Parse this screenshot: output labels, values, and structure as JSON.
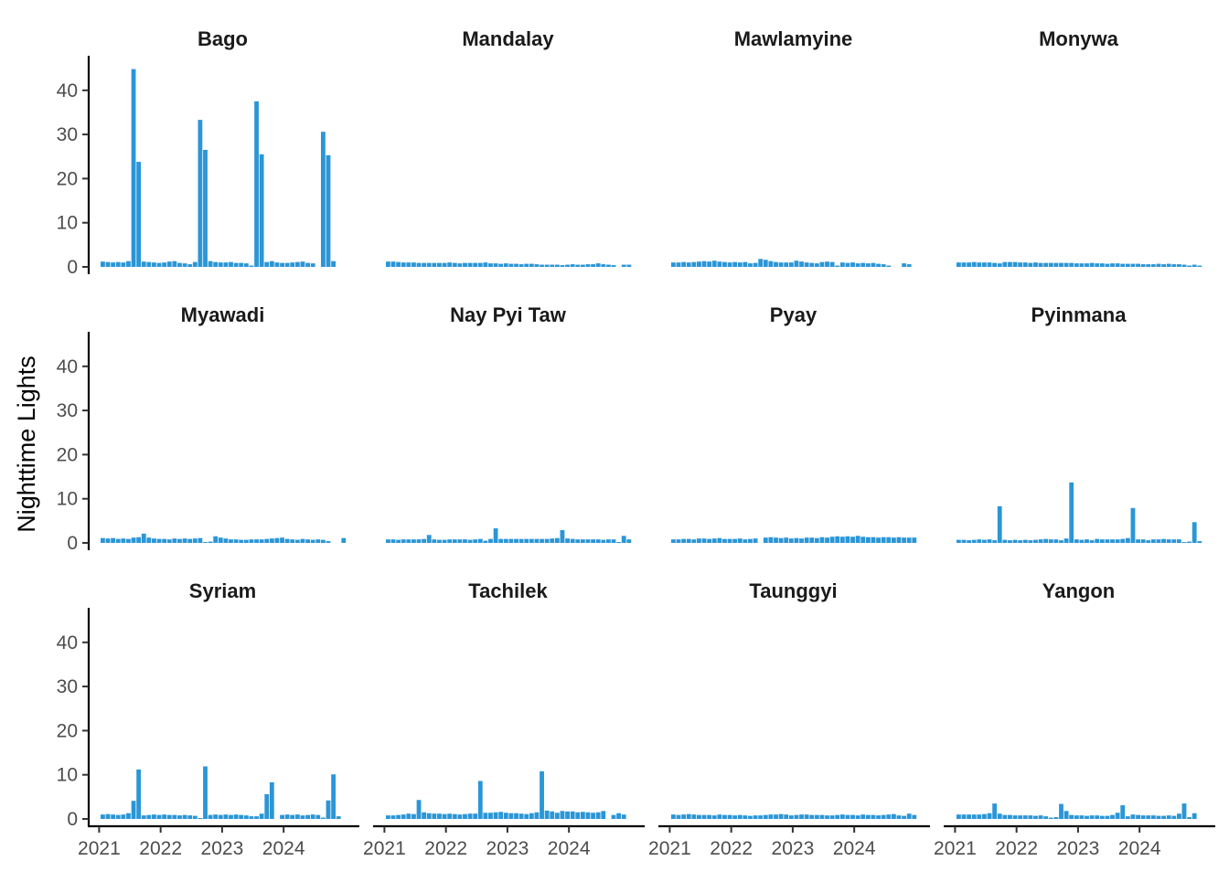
{
  "chart_data": {
    "type": "bar",
    "facet_by": "city",
    "facet_layout": "3 rows x 4 columns",
    "title": "",
    "xlabel": "",
    "ylabel": "Nighttime Lights",
    "x_range": [
      "2021-01",
      "2024-12"
    ],
    "ylim": [
      0,
      47
    ],
    "y_ticks": [
      0,
      10,
      20,
      30,
      40
    ],
    "x_ticks": [
      "2021",
      "2022",
      "2023",
      "2024"
    ],
    "grid": false,
    "legend": "none",
    "bar_color": "#2b96d6",
    "months": [
      "2021-01",
      "2021-02",
      "2021-03",
      "2021-04",
      "2021-05",
      "2021-06",
      "2021-07",
      "2021-08",
      "2021-09",
      "2021-10",
      "2021-11",
      "2021-12",
      "2022-01",
      "2022-02",
      "2022-03",
      "2022-04",
      "2022-05",
      "2022-06",
      "2022-07",
      "2022-08",
      "2022-09",
      "2022-10",
      "2022-11",
      "2022-12",
      "2023-01",
      "2023-02",
      "2023-03",
      "2023-04",
      "2023-05",
      "2023-06",
      "2023-07",
      "2023-08",
      "2023-09",
      "2023-10",
      "2023-11",
      "2023-12",
      "2024-01",
      "2024-02",
      "2024-03",
      "2024-04",
      "2024-05",
      "2024-06",
      "2024-07",
      "2024-08",
      "2024-09",
      "2024-10",
      "2024-11",
      "2024-12"
    ],
    "facets": [
      {
        "name": "Bago",
        "values": [
          1.2,
          1.1,
          1.0,
          1.1,
          1.0,
          1.3,
          44.8,
          23.8,
          1.2,
          1.1,
          1.0,
          0.9,
          1.0,
          1.2,
          1.3,
          0.9,
          0.8,
          0.6,
          1.1,
          33.3,
          26.5,
          1.3,
          1.1,
          1.0,
          1.0,
          1.1,
          0.9,
          0.9,
          0.8,
          0.3,
          37.5,
          25.5,
          1.1,
          1.3,
          1.0,
          0.9,
          0.9,
          1.0,
          1.1,
          1.2,
          0.9,
          0.8,
          null,
          30.6,
          25.3,
          1.3,
          null,
          null
        ]
      },
      {
        "name": "Mandalay",
        "values": [
          1.2,
          1.2,
          1.1,
          1.0,
          1.0,
          1.0,
          0.9,
          0.9,
          0.9,
          0.9,
          0.9,
          0.9,
          1.0,
          0.9,
          0.8,
          0.9,
          0.9,
          0.9,
          0.9,
          1.0,
          0.8,
          0.8,
          0.7,
          0.8,
          0.7,
          0.7,
          0.6,
          0.7,
          0.7,
          0.6,
          0.5,
          0.5,
          0.5,
          0.5,
          0.4,
          0.5,
          0.6,
          0.5,
          0.5,
          0.6,
          0.6,
          0.8,
          0.6,
          0.5,
          0.4,
          null,
          0.5,
          0.5
        ]
      },
      {
        "name": "Mawlamyine",
        "values": [
          1.0,
          1.0,
          1.1,
          1.0,
          1.1,
          1.2,
          1.3,
          1.2,
          1.4,
          1.2,
          1.1,
          1.0,
          1.1,
          1.0,
          1.1,
          0.8,
          0.9,
          1.8,
          1.6,
          1.3,
          1.1,
          1.0,
          1.0,
          1.0,
          1.4,
          1.2,
          1.0,
          0.9,
          0.8,
          1.1,
          1.2,
          1.1,
          0.3,
          1.0,
          0.9,
          1.0,
          0.8,
          0.9,
          0.8,
          0.9,
          0.7,
          0.6,
          0.3,
          null,
          null,
          0.8,
          0.6,
          null
        ]
      },
      {
        "name": "Monywa",
        "values": [
          1.0,
          1.0,
          1.0,
          1.1,
          1.0,
          1.0,
          1.0,
          0.9,
          0.8,
          1.1,
          1.1,
          1.1,
          1.0,
          1.0,
          0.9,
          1.0,
          0.9,
          0.9,
          0.9,
          0.9,
          0.9,
          0.9,
          0.9,
          0.8,
          0.8,
          0.8,
          0.9,
          0.8,
          0.8,
          0.7,
          0.8,
          0.8,
          0.7,
          0.7,
          0.7,
          0.7,
          0.6,
          0.6,
          0.6,
          0.7,
          0.6,
          0.7,
          0.6,
          0.6,
          0.5,
          0.3,
          0.5,
          0.3
        ]
      },
      {
        "name": "Myawadi",
        "values": [
          1.1,
          1.0,
          1.1,
          0.9,
          1.0,
          0.9,
          1.2,
          1.3,
          2.1,
          1.2,
          1.0,
          0.9,
          0.9,
          0.8,
          1.0,
          0.9,
          1.0,
          0.9,
          1.0,
          1.1,
          0.2,
          0.3,
          1.5,
          1.2,
          1.0,
          0.8,
          0.8,
          0.7,
          0.7,
          0.8,
          0.8,
          0.8,
          0.9,
          1.0,
          1.1,
          1.2,
          0.9,
          0.8,
          0.7,
          0.9,
          0.8,
          0.7,
          0.8,
          0.7,
          0.4,
          null,
          null,
          1.1
        ]
      },
      {
        "name": "Nay Pyi Taw",
        "values": [
          0.8,
          0.8,
          0.7,
          0.8,
          0.8,
          0.8,
          0.8,
          0.9,
          1.8,
          0.8,
          0.7,
          0.7,
          0.8,
          0.8,
          0.8,
          0.8,
          0.7,
          0.8,
          0.9,
          0.5,
          0.9,
          3.3,
          0.9,
          0.9,
          0.9,
          0.9,
          0.9,
          0.9,
          0.9,
          0.9,
          0.9,
          0.9,
          1.0,
          1.1,
          2.9,
          1.0,
          0.9,
          0.8,
          0.8,
          0.8,
          0.8,
          0.8,
          0.7,
          0.8,
          0.8,
          0.2,
          1.6,
          0.8
        ]
      },
      {
        "name": "Pyay",
        "values": [
          0.8,
          0.8,
          0.9,
          0.9,
          0.8,
          1.0,
          1.0,
          0.9,
          1.0,
          1.1,
          0.9,
          0.9,
          0.9,
          1.0,
          0.8,
          0.9,
          1.0,
          null,
          1.2,
          1.3,
          1.2,
          1.1,
          1.2,
          1.0,
          1.1,
          1.0,
          1.2,
          1.2,
          1.1,
          1.3,
          1.2,
          1.4,
          1.5,
          1.4,
          1.5,
          1.4,
          1.6,
          1.4,
          1.3,
          1.3,
          1.2,
          1.3,
          1.3,
          1.2,
          1.3,
          1.2,
          1.2,
          1.2
        ]
      },
      {
        "name": "Pyinmana",
        "values": [
          0.7,
          0.7,
          0.6,
          0.7,
          0.8,
          0.7,
          0.8,
          0.6,
          8.3,
          0.7,
          0.6,
          0.7,
          0.6,
          0.7,
          0.6,
          0.7,
          0.8,
          0.9,
          0.8,
          0.8,
          0.6,
          1.0,
          13.7,
          0.8,
          0.7,
          0.8,
          0.6,
          0.9,
          0.8,
          0.8,
          0.8,
          0.8,
          0.9,
          1.1,
          7.9,
          0.8,
          0.8,
          0.6,
          0.8,
          0.8,
          0.9,
          0.8,
          0.8,
          0.8,
          0.2,
          0.3,
          4.7,
          0.4
        ]
      },
      {
        "name": "Syriam",
        "values": [
          1.0,
          1.1,
          1.0,
          0.9,
          1.0,
          1.3,
          4.1,
          11.2,
          0.8,
          0.9,
          1.0,
          0.9,
          1.0,
          0.9,
          0.9,
          0.8,
          0.9,
          0.8,
          0.7,
          0.2,
          11.9,
          0.9,
          1.0,
          0.9,
          1.0,
          0.9,
          1.0,
          0.9,
          0.8,
          0.6,
          0.6,
          1.2,
          5.6,
          8.3,
          null,
          0.9,
          1.0,
          0.9,
          1.0,
          0.8,
          0.9,
          1.0,
          0.9,
          0.3,
          4.2,
          10.1,
          0.6,
          null
        ]
      },
      {
        "name": "Tachilek",
        "values": [
          0.8,
          0.8,
          0.9,
          1.0,
          1.2,
          1.1,
          4.3,
          1.5,
          1.3,
          1.2,
          1.2,
          1.1,
          1.2,
          1.1,
          1.0,
          1.1,
          1.2,
          1.2,
          8.6,
          1.4,
          1.4,
          1.5,
          1.6,
          1.4,
          1.3,
          1.3,
          1.2,
          1.1,
          1.3,
          1.5,
          10.8,
          1.9,
          1.7,
          1.4,
          1.8,
          1.7,
          1.7,
          1.5,
          1.6,
          1.5,
          1.4,
          1.5,
          1.8,
          null,
          0.9,
          1.3,
          1.0,
          null
        ]
      },
      {
        "name": "Taunggyi",
        "values": [
          1.0,
          0.9,
          1.0,
          1.1,
          1.0,
          0.9,
          0.9,
          0.9,
          0.8,
          1.0,
          0.9,
          0.9,
          0.8,
          0.9,
          0.8,
          0.7,
          0.8,
          0.8,
          0.9,
          1.0,
          1.0,
          1.1,
          1.0,
          0.8,
          0.9,
          1.0,
          1.0,
          0.9,
          0.9,
          0.9,
          0.8,
          0.8,
          0.9,
          1.0,
          0.9,
          0.9,
          0.8,
          1.0,
          0.9,
          0.9,
          0.8,
          0.9,
          1.0,
          1.1,
          0.8,
          0.7,
          1.2,
          0.9
        ]
      },
      {
        "name": "Yangon",
        "values": [
          1.0,
          1.0,
          1.0,
          1.0,
          1.0,
          1.1,
          1.3,
          3.5,
          1.2,
          0.9,
          0.9,
          0.8,
          0.8,
          0.8,
          0.8,
          0.7,
          0.8,
          0.6,
          0.3,
          0.4,
          3.4,
          1.8,
          0.9,
          0.8,
          0.8,
          0.7,
          0.8,
          0.8,
          0.7,
          0.7,
          0.9,
          1.4,
          3.1,
          0.6,
          1.0,
          0.9,
          0.8,
          0.8,
          0.8,
          0.7,
          0.7,
          0.8,
          0.7,
          1.2,
          3.5,
          0.4,
          1.3,
          null
        ]
      }
    ]
  }
}
